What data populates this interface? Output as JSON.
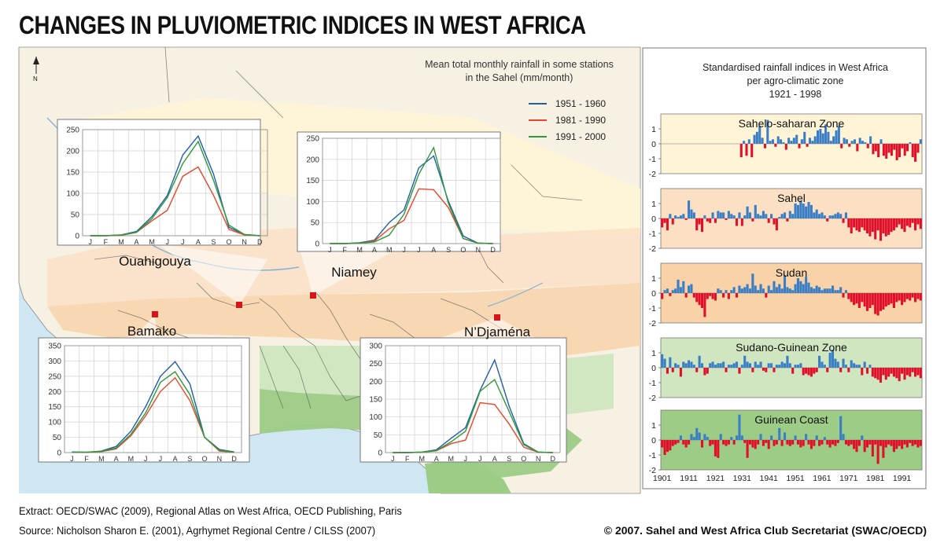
{
  "page": {
    "title": "CHANGES IN PLUVIOMETRIC INDICES IN WEST AFRICA",
    "extract": "Extract: OECD/SWAC (2009), Regional Atlas on West Africa, OECD Publishing, Paris",
    "source": "Source: Nicholson Sharon E. (2001), Agrhymet Regional Centre / CILSS (2007)",
    "copyright": "© 2007. Sahel and West Africa Club Secretariat (SWAC/OECD)",
    "compass_label": "N",
    "colors": {
      "series_1951": "#1f5fa8",
      "series_1981": "#e8462a",
      "series_1991": "#2e9a3a",
      "index_positive": "#3a7ec6",
      "index_negative": "#e0102a",
      "sahara_band": "#fff4d6",
      "sahel_band": "#fbe0c4",
      "sudan_band": "#f9d2a8",
      "guinea_band": "#cfe6c0",
      "coast_band": "#9ccc86",
      "ocean": "#cfe7f2",
      "land": "#f6f1e2"
    }
  },
  "rainfall_legend": {
    "title_line1": "Mean total  monthly rainfall in some stations",
    "title_line2": "in the Sahel (mm/month)",
    "items": [
      {
        "label": "1951 - 1960",
        "color": "#1f5fa8"
      },
      {
        "label": "1981 - 1990",
        "color": "#e8462a"
      },
      {
        "label": "1991 - 2000",
        "color": "#2e9a3a"
      }
    ]
  },
  "indices_panel": {
    "title_line1": "Standardised rainfall indices in West Africa",
    "title_line2": "per agro-climatic zone",
    "title_line3": "1921 - 1998"
  },
  "chart_data": [
    {
      "type": "line",
      "title": "Ouahigouya",
      "x": [
        "J",
        "F",
        "M",
        "A",
        "M",
        "J",
        "J",
        "A",
        "S",
        "O",
        "N",
        "D"
      ],
      "ylim": [
        0,
        250
      ],
      "yticks": [
        0,
        50,
        100,
        150,
        200,
        250
      ],
      "series": [
        {
          "name": "1951 - 1960",
          "values": [
            0,
            0,
            2,
            10,
            45,
            95,
            190,
            235,
            145,
            20,
            3,
            0
          ]
        },
        {
          "name": "1981 - 1990",
          "values": [
            0,
            0,
            1,
            8,
            35,
            60,
            140,
            162,
            95,
            15,
            2,
            0
          ]
        },
        {
          "name": "1991 - 2000",
          "values": [
            0,
            0,
            2,
            8,
            40,
            90,
            170,
            222,
            130,
            25,
            3,
            0
          ]
        }
      ]
    },
    {
      "type": "line",
      "title": "Niamey",
      "x": [
        "J",
        "F",
        "M",
        "A",
        "M",
        "J",
        "J",
        "A",
        "S",
        "O",
        "N",
        "D"
      ],
      "ylim": [
        0,
        250
      ],
      "yticks": [
        0,
        50,
        100,
        150,
        200,
        250
      ],
      "series": [
        {
          "name": "1951 - 1960",
          "values": [
            0,
            0,
            2,
            8,
            50,
            80,
            180,
            208,
            100,
            18,
            1,
            0
          ]
        },
        {
          "name": "1981 - 1990",
          "values": [
            0,
            0,
            1,
            6,
            35,
            55,
            130,
            128,
            85,
            12,
            1,
            0
          ]
        },
        {
          "name": "1991 - 2000",
          "values": [
            0,
            0,
            1,
            4,
            20,
            70,
            165,
            228,
            95,
            12,
            1,
            0
          ]
        }
      ]
    },
    {
      "type": "line",
      "title": "Bamako",
      "x": [
        "J",
        "F",
        "M",
        "A",
        "M",
        "J",
        "J",
        "A",
        "S",
        "O",
        "N",
        "D"
      ],
      "ylim": [
        0,
        350
      ],
      "yticks": [
        0,
        50,
        100,
        150,
        200,
        250,
        300,
        350
      ],
      "series": [
        {
          "name": "1951 - 1960",
          "values": [
            2,
            1,
            5,
            20,
            70,
            150,
            250,
            298,
            225,
            50,
            10,
            2
          ]
        },
        {
          "name": "1981 - 1990",
          "values": [
            1,
            1,
            3,
            12,
            55,
            120,
            200,
            245,
            170,
            50,
            5,
            1
          ]
        },
        {
          "name": "1991 - 2000",
          "values": [
            1,
            1,
            4,
            15,
            60,
            130,
            230,
            265,
            190,
            50,
            8,
            1
          ]
        }
      ]
    },
    {
      "type": "line",
      "title": "N’Djaména",
      "x": [
        "J",
        "F",
        "M",
        "A",
        "M",
        "J",
        "J",
        "A",
        "S",
        "O",
        "N",
        "D"
      ],
      "ylim": [
        0,
        300
      ],
      "yticks": [
        0,
        50,
        100,
        150,
        200,
        250,
        300
      ],
      "series": [
        {
          "name": "1951 - 1960",
          "values": [
            0,
            0,
            1,
            8,
            40,
            70,
            175,
            260,
            130,
            25,
            1,
            0
          ]
        },
        {
          "name": "1981 - 1990",
          "values": [
            0,
            0,
            1,
            5,
            25,
            35,
            140,
            135,
            80,
            15,
            1,
            0
          ]
        },
        {
          "name": "1991 - 2000",
          "values": [
            0,
            0,
            1,
            6,
            30,
            60,
            172,
            205,
            115,
            22,
            1,
            0
          ]
        }
      ]
    },
    {
      "type": "bar",
      "title": "Sahelo-saharan Zone",
      "x_start": 1901,
      "xticks": [
        1901,
        1911,
        1921,
        1931,
        1941,
        1951,
        1961,
        1971,
        1981,
        1991
      ],
      "ylim": [
        -2,
        2
      ],
      "yticks": [
        -2,
        -1,
        0,
        1
      ],
      "values": [
        0,
        0,
        0,
        0,
        0,
        0,
        0,
        0,
        0,
        0,
        0,
        0,
        0,
        0,
        0,
        0,
        0,
        0,
        0,
        0,
        0,
        0,
        0,
        0,
        0,
        0,
        0,
        0,
        0,
        0,
        -0.9,
        0.2,
        -0.8,
        0.3,
        -0.9,
        0.6,
        0.8,
        1.2,
        0.4,
        -0.3,
        1.6,
        0.2,
        0.3,
        -0.2,
        0.5,
        0.3,
        0.1,
        -0.4,
        0.4,
        0.2,
        0.4,
        0.6,
        -0.3,
        0.3,
        0.8,
        -0.2,
        0.4,
        0.2,
        0.5,
        0.9,
        1.0,
        0.7,
        1.3,
        0.8,
        0.2,
        0.5,
        0.9,
        1.2,
        -0.3,
        0.4,
        0.3,
        -0.2,
        0.2,
        0.3,
        -0.5,
        0.4,
        0.2,
        0.1,
        -0.3,
        0.5,
        -0.7,
        -0.5,
        -0.9,
        0.3,
        -0.8,
        -1.0,
        -0.6,
        -0.8,
        -0.4,
        -1.1,
        -0.9,
        -0.3,
        -0.8,
        -0.5,
        0.1,
        -0.9,
        -1.2,
        -0.6,
        0.3
      ]
    },
    {
      "type": "bar",
      "title": "Sahel",
      "x_start": 1901,
      "xticks": [
        1901,
        1911,
        1921,
        1931,
        1941,
        1951,
        1961,
        1971,
        1981,
        1991
      ],
      "ylim": [
        -2,
        2
      ],
      "yticks": [
        -2,
        -1,
        0,
        1
      ],
      "values": [
        -0.6,
        -0.3,
        -0.8,
        0.3,
        -0.4,
        0.2,
        0.1,
        0.2,
        0.3,
        -0.1,
        1.2,
        0.6,
        0.4,
        -0.8,
        -0.4,
        -0.9,
        0.2,
        -0.2,
        -0.3,
        0.4,
        -0.3,
        0.5,
        0.4,
        0.4,
        -0.1,
        0.5,
        0.3,
        0.2,
        -0.5,
        0.4,
        -0.5,
        0.2,
        0.8,
        0.4,
        -0.2,
        0.9,
        0.3,
        0.2,
        0.5,
        0.3,
        -0.3,
        0.3,
        -0.4,
        -0.8,
        0.1,
        0.3,
        0.4,
        -0.2,
        0.5,
        0.3,
        1.0,
        0.9,
        1.2,
        1.0,
        0.8,
        1.1,
        0.9,
        0.4,
        0.6,
        0.3,
        0.4,
        0.2,
        -0.2,
        0.2,
        0.2,
        0.3,
        0.4,
        0.3,
        -0.3,
        0.4,
        -0.6,
        -1.0,
        -0.6,
        -0.8,
        -0.9,
        -0.6,
        -0.8,
        -1.0,
        -1.2,
        -0.9,
        -1.4,
        -0.8,
        -1.5,
        -1.0,
        -1.2,
        -1.1,
        -0.9,
        -0.8,
        -0.6,
        -0.4,
        -0.7,
        -0.9,
        -0.5,
        -0.6,
        -0.3,
        -0.8,
        -0.4,
        -0.7
      ]
    },
    {
      "type": "bar",
      "title": "Sudan",
      "x_start": 1901,
      "xticks": [
        1901,
        1911,
        1921,
        1931,
        1941,
        1951,
        1961,
        1971,
        1981,
        1991
      ],
      "ylim": [
        -2,
        2
      ],
      "yticks": [
        -2,
        -1,
        0,
        1
      ],
      "values": [
        -0.4,
        0.2,
        0.3,
        -0.2,
        0.2,
        0.3,
        0.9,
        0.4,
        0.8,
        -0.3,
        0.5,
        0.6,
        -0.3,
        -0.6,
        -0.8,
        -1.0,
        -1.6,
        -0.4,
        -0.2,
        -0.4,
        -0.5,
        0.3,
        0.2,
        -0.3,
        0.2,
        -0.4,
        0.2,
        0.4,
        -0.3,
        0.5,
        0.3,
        0.4,
        0.6,
        0.3,
        1.3,
        0.5,
        0.2,
        0.6,
        0.3,
        -0.3,
        0.5,
        0.2,
        0.8,
        0.4,
        0.6,
        0.3,
        1.2,
        0.4,
        0.3,
        0.2,
        0.6,
        1.0,
        0.8,
        0.6,
        1.1,
        0.7,
        0.4,
        0.3,
        0.5,
        0.4,
        0.2,
        0.3,
        0.3,
        0.3,
        0.5,
        0.2,
        0.2,
        0.4,
        -0.3,
        0.2,
        -0.4,
        -0.6,
        -0.8,
        -0.7,
        -1.0,
        -0.6,
        -0.9,
        -1.2,
        -1.0,
        -0.8,
        -1.4,
        -1.5,
        -1.2,
        -1.1,
        -0.9,
        -0.8,
        -0.7,
        -1.0,
        -0.6,
        -0.5,
        -0.8,
        -0.6,
        -0.4,
        -0.5,
        -0.3,
        -0.6,
        -0.4,
        -0.5
      ]
    },
    {
      "type": "bar",
      "title": "Sudano-Guinean Zone",
      "x_start": 1901,
      "xticks": [
        1901,
        1911,
        1921,
        1931,
        1941,
        1951,
        1961,
        1971,
        1981,
        1991
      ],
      "ylim": [
        -2,
        2
      ],
      "yticks": [
        -2,
        -1,
        0,
        1
      ],
      "values": [
        0.9,
        0.6,
        -0.4,
        0.7,
        -0.3,
        0.3,
        0.2,
        -0.6,
        0.4,
        0.3,
        0.5,
        0.4,
        0.2,
        -0.3,
        0.8,
        0.3,
        -0.5,
        -0.4,
        0.3,
        0.4,
        0.2,
        0.3,
        0.3,
        0.4,
        -0.3,
        0.2,
        0.2,
        0.3,
        0.4,
        -0.4,
        0.2,
        0.8,
        0.4,
        0.3,
        -0.3,
        0.4,
        0.2,
        0.4,
        -0.2,
        -0.3,
        0.3,
        0.3,
        -0.3,
        0.2,
        0.2,
        0.4,
        0.3,
        0.8,
        0.3,
        -0.4,
        0.2,
        0.2,
        0.3,
        -0.5,
        -0.4,
        -0.5,
        -0.6,
        -0.4,
        -0.3,
        0.8,
        0.4,
        0.2,
        -0.3,
        1.0,
        1.2,
        0.6,
        0.4,
        -0.3,
        0.6,
        0.2,
        -0.3,
        0.5,
        0.3,
        0.2,
        0.2,
        -0.5,
        0.4,
        -0.4,
        0.2,
        -0.6,
        -0.7,
        -0.8,
        -1.0,
        -0.5,
        -0.8,
        -0.6,
        -0.4,
        -0.6,
        -0.7,
        -0.9,
        -0.4,
        -0.8,
        -0.5,
        -0.6,
        -0.3,
        -0.6,
        -0.5,
        -0.7
      ]
    },
    {
      "type": "bar",
      "title": "Guinean Coast",
      "x_start": 1901,
      "xticks": [
        1901,
        1911,
        1921,
        1931,
        1941,
        1951,
        1961,
        1971,
        1981,
        1991
      ],
      "ylim": [
        -2,
        2
      ],
      "yticks": [
        -2,
        -1,
        0,
        1
      ],
      "values": [
        -0.5,
        -1.0,
        -0.8,
        -0.7,
        -0.4,
        -0.3,
        -0.2,
        0.3,
        -0.3,
        -0.5,
        -0.3,
        0.4,
        0.2,
        0.8,
        0.5,
        -0.5,
        0.4,
        0.2,
        -0.4,
        -0.3,
        -1.1,
        -1.2,
        0.4,
        -0.3,
        -0.4,
        -0.3,
        0.2,
        -0.3,
        0.3,
        1.7,
        0.3,
        -0.2,
        -1.2,
        -0.3,
        -0.5,
        -0.6,
        -0.3,
        0.4,
        -0.4,
        -0.2,
        -0.6,
        0.3,
        -0.4,
        -0.3,
        0.8,
        -0.4,
        0.5,
        -0.3,
        -0.4,
        -0.3,
        0.3,
        -0.3,
        -0.5,
        -0.4,
        0.4,
        -0.3,
        -0.6,
        -0.4,
        0.3,
        -0.4,
        -0.3,
        0.2,
        -0.3,
        -0.5,
        -0.3,
        -0.4,
        -0.2,
        1.6,
        0.4,
        -0.3,
        -0.4,
        -0.3,
        -0.6,
        -0.8,
        -0.4,
        0.3,
        -0.8,
        -0.5,
        -0.3,
        -1.1,
        -0.3,
        -1.6,
        -0.4,
        -1.2,
        -0.5,
        -0.3,
        -0.4,
        -0.8,
        -0.6,
        -0.4,
        -0.6,
        -0.3,
        -0.5,
        -0.2,
        -0.4,
        -0.3,
        -0.5,
        -0.4
      ]
    }
  ]
}
